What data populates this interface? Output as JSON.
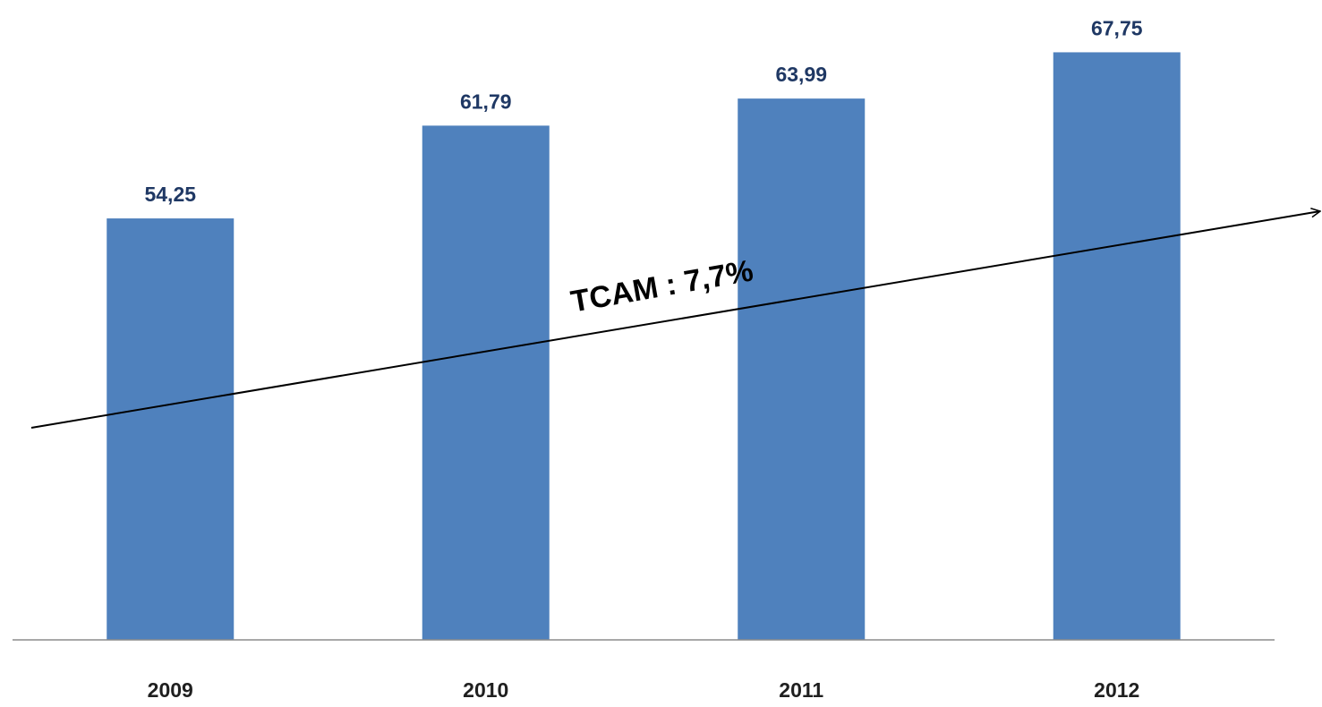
{
  "chart_data": {
    "type": "bar",
    "categories": [
      "2009",
      "2010",
      "2011",
      "2012"
    ],
    "values": [
      54.25,
      61.79,
      63.99,
      67.75
    ],
    "value_labels": [
      "54,25",
      "61,79",
      "63,99",
      "67,75"
    ],
    "color": "#4f81bd",
    "ylim": [
      20,
      72
    ],
    "annotation": "TCAM : 7,7%"
  }
}
